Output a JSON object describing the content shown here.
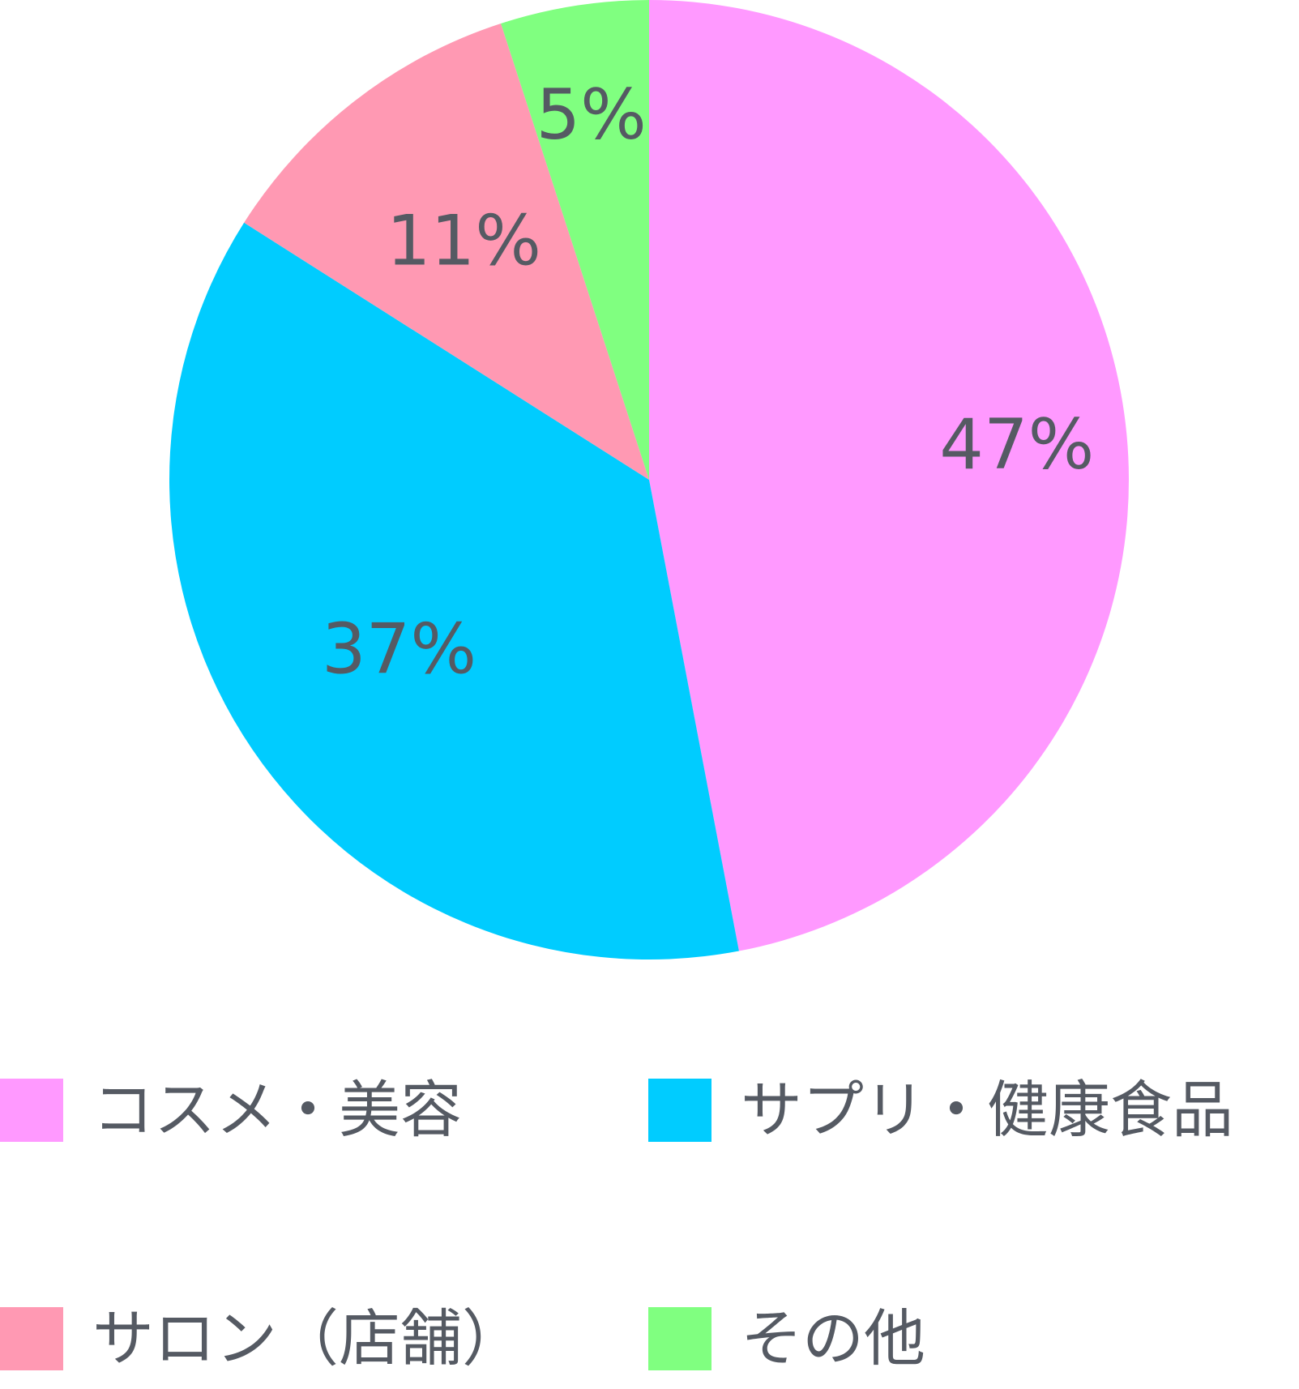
{
  "chart_data": {
    "type": "pie",
    "title": "",
    "start_angle_deg": 0,
    "direction": "clockwise",
    "slices": [
      {
        "name": "コスメ・美容",
        "value": 47,
        "label": "47%",
        "color": "#ff99ff"
      },
      {
        "name": "サプリ・健康食品",
        "value": 37,
        "label": "37%",
        "color": "#00ccff"
      },
      {
        "name": "サロン（店舗）",
        "value": 11,
        "label": "11%",
        "color": "#ff99b3"
      },
      {
        "name": "その他",
        "value": 5,
        "label": "5%",
        "color": "#80ff80"
      }
    ],
    "legend": {
      "position": "bottom",
      "items": [
        "コスメ・美容",
        "サプリ・健康食品",
        "サロン（店舗）",
        "その他"
      ]
    }
  }
}
